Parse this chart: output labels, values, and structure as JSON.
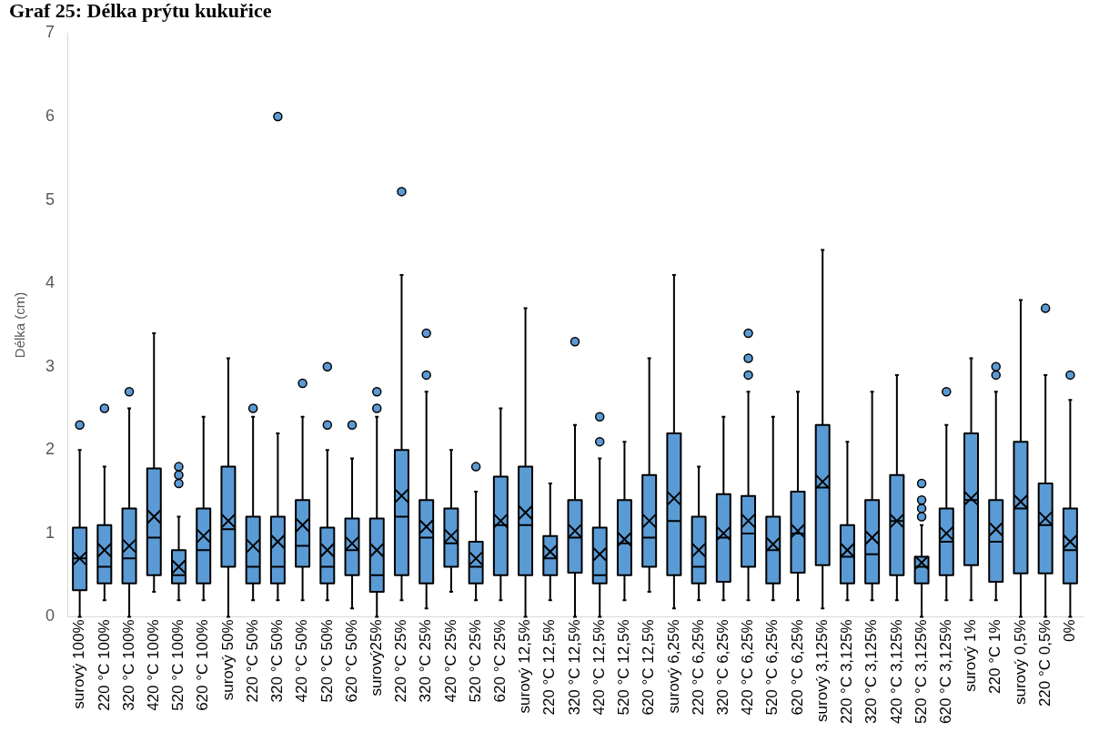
{
  "chart_data": {
    "type": "box",
    "title": "Graf 25: Délka prýtu kukuřice",
    "ylabel": "Délka (cm)",
    "categories": [
      "surový 100%",
      "220 °C 100%",
      "320 °C 100%",
      "420 °C 100%",
      "520 °C 100%",
      "620 °C 100%",
      "surový 50%",
      "220 °C 50%",
      "320 °C 50%",
      "420 °C 50%",
      "520 °C 50%",
      "620 °C 50%",
      "surový25%",
      "220 °C 25%",
      "320 °C 25%",
      "420 °C 25%",
      "520 °C 25%",
      "620 °C 25%",
      "surový 12,5%",
      "220 °C 12,5%",
      "320 °C 12,5%",
      "420 °C 12,5%",
      "520 °C 12,5%",
      "620 °C 12,5%",
      "surový 6,25%",
      "220 °C 6,25%",
      "320 °C 6,25%",
      "420 °C 6,25%",
      "520 °C 6,25%",
      "620 °C 6,25%",
      "surový 3,125%",
      "220 °C 3,125%",
      "320 °C 3,125%",
      "420 °C 3,125%",
      "520 °C 3,125%",
      "620 °C 3,125%",
      "surový 1%",
      "220 °C 1%",
      "surový 0,5%",
      "220 °C 0,5%",
      "0%"
    ],
    "color": "#5b9bd5",
    "ylim": [
      0,
      7
    ],
    "yticks": [
      0,
      1,
      2,
      3,
      4,
      5,
      6,
      7
    ],
    "grid": false,
    "boxes": [
      {
        "low": 0,
        "q1": 0.32,
        "median": 0.7,
        "q3": 1.07,
        "high": 2.0,
        "mean": 0.7,
        "outliers": [
          2.3
        ]
      },
      {
        "low": 0.2,
        "q1": 0.4,
        "median": 0.6,
        "q3": 1.1,
        "high": 1.8,
        "mean": 0.8,
        "outliers": [
          2.5
        ]
      },
      {
        "low": 0,
        "q1": 0.4,
        "median": 0.7,
        "q3": 1.3,
        "high": 2.5,
        "mean": 0.85,
        "outliers": [
          2.7
        ]
      },
      {
        "low": 0.3,
        "q1": 0.5,
        "median": 0.95,
        "q3": 1.78,
        "high": 3.4,
        "mean": 1.2
      },
      {
        "low": 0.2,
        "q1": 0.4,
        "median": 0.5,
        "q3": 0.8,
        "high": 1.2,
        "mean": 0.6,
        "outliers": [
          1.6,
          1.7,
          1.8
        ]
      },
      {
        "low": 0.2,
        "q1": 0.4,
        "median": 0.8,
        "q3": 1.3,
        "high": 2.4,
        "mean": 0.97
      },
      {
        "low": 0,
        "q1": 0.6,
        "median": 1.05,
        "q3": 1.8,
        "high": 3.1,
        "mean": 1.15
      },
      {
        "low": 0.2,
        "q1": 0.4,
        "median": 0.6,
        "q3": 1.2,
        "high": 2.4,
        "mean": 0.85,
        "outliers": [
          2.5
        ]
      },
      {
        "low": 0.2,
        "q1": 0.4,
        "median": 0.6,
        "q3": 1.2,
        "high": 2.2,
        "mean": 0.9,
        "outliers": [
          6.0
        ]
      },
      {
        "low": 0.2,
        "q1": 0.6,
        "median": 0.85,
        "q3": 1.4,
        "high": 2.4,
        "mean": 1.1,
        "outliers": [
          2.8
        ]
      },
      {
        "low": 0.2,
        "q1": 0.4,
        "median": 0.6,
        "q3": 1.07,
        "high": 2.0,
        "mean": 0.8,
        "outliers": [
          2.3,
          3.0
        ]
      },
      {
        "low": 0.1,
        "q1": 0.5,
        "median": 0.8,
        "q3": 1.18,
        "high": 1.9,
        "mean": 0.88,
        "outliers": [
          2.3
        ]
      },
      {
        "low": 0,
        "q1": 0.3,
        "median": 0.5,
        "q3": 1.18,
        "high": 2.4,
        "mean": 0.8,
        "outliers": [
          2.5,
          2.7
        ]
      },
      {
        "low": 0.2,
        "q1": 0.5,
        "median": 1.2,
        "q3": 2.0,
        "high": 4.1,
        "mean": 1.45,
        "outliers": [
          5.1
        ]
      },
      {
        "low": 0.1,
        "q1": 0.4,
        "median": 0.95,
        "q3": 1.4,
        "high": 2.7,
        "mean": 1.08,
        "outliers": [
          2.9,
          3.4
        ]
      },
      {
        "low": 0.3,
        "q1": 0.6,
        "median": 0.88,
        "q3": 1.3,
        "high": 2.0,
        "mean": 0.97
      },
      {
        "low": 0.2,
        "q1": 0.4,
        "median": 0.6,
        "q3": 0.9,
        "high": 1.5,
        "mean": 0.7,
        "outliers": [
          1.8
        ]
      },
      {
        "low": 0.2,
        "q1": 0.5,
        "median": 1.1,
        "q3": 1.68,
        "high": 2.5,
        "mean": 1.15
      },
      {
        "low": 0,
        "q1": 0.5,
        "median": 1.1,
        "q3": 1.8,
        "high": 3.7,
        "mean": 1.25
      },
      {
        "low": 0.2,
        "q1": 0.5,
        "median": 0.7,
        "q3": 0.97,
        "high": 1.6,
        "mean": 0.78
      },
      {
        "low": 0,
        "q1": 0.53,
        "median": 0.95,
        "q3": 1.4,
        "high": 2.3,
        "mean": 1.03,
        "outliers": [
          3.3
        ]
      },
      {
        "low": 0,
        "q1": 0.4,
        "median": 0.5,
        "q3": 1.07,
        "high": 1.9,
        "mean": 0.75,
        "outliers": [
          2.1,
          2.4
        ]
      },
      {
        "low": 0.2,
        "q1": 0.5,
        "median": 0.88,
        "q3": 1.4,
        "high": 2.1,
        "mean": 0.93
      },
      {
        "low": 0.3,
        "q1": 0.6,
        "median": 0.95,
        "q3": 1.7,
        "high": 3.1,
        "mean": 1.15
      },
      {
        "low": 0.1,
        "q1": 0.5,
        "median": 1.15,
        "q3": 2.2,
        "high": 4.1,
        "mean": 1.42
      },
      {
        "low": 0.2,
        "q1": 0.4,
        "median": 0.6,
        "q3": 1.2,
        "high": 1.8,
        "mean": 0.8
      },
      {
        "low": 0.2,
        "q1": 0.42,
        "median": 0.95,
        "q3": 1.47,
        "high": 2.4,
        "mean": 1.0
      },
      {
        "low": 0.2,
        "q1": 0.6,
        "median": 1.0,
        "q3": 1.45,
        "high": 2.7,
        "mean": 1.15,
        "outliers": [
          2.9,
          3.1,
          3.4
        ]
      },
      {
        "low": 0.2,
        "q1": 0.4,
        "median": 0.8,
        "q3": 1.2,
        "high": 2.4,
        "mean": 0.87
      },
      {
        "low": 0.2,
        "q1": 0.53,
        "median": 1.0,
        "q3": 1.5,
        "high": 2.7,
        "mean": 1.03
      },
      {
        "low": 0.1,
        "q1": 0.62,
        "median": 1.55,
        "q3": 2.3,
        "high": 4.4,
        "mean": 1.62
      },
      {
        "low": 0.2,
        "q1": 0.4,
        "median": 0.72,
        "q3": 1.1,
        "high": 2.1,
        "mean": 0.8
      },
      {
        "low": 0.2,
        "q1": 0.4,
        "median": 0.75,
        "q3": 1.4,
        "high": 2.7,
        "mean": 0.95
      },
      {
        "low": 0.2,
        "q1": 0.5,
        "median": 1.15,
        "q3": 1.7,
        "high": 2.9,
        "mean": 1.15
      },
      {
        "low": 0,
        "q1": 0.4,
        "median": 0.6,
        "q3": 0.72,
        "high": 1.1,
        "mean": 0.65,
        "outliers": [
          1.2,
          1.3,
          1.4,
          1.6
        ]
      },
      {
        "low": 0.2,
        "q1": 0.5,
        "median": 0.9,
        "q3": 1.3,
        "high": 2.3,
        "mean": 1.0,
        "outliers": [
          2.7
        ]
      },
      {
        "low": 0.2,
        "q1": 0.62,
        "median": 1.4,
        "q3": 2.2,
        "high": 3.1,
        "mean": 1.42
      },
      {
        "low": 0.2,
        "q1": 0.42,
        "median": 0.9,
        "q3": 1.4,
        "high": 2.7,
        "mean": 1.05,
        "outliers": [
          2.9,
          3.0
        ]
      },
      {
        "low": 0,
        "q1": 0.52,
        "median": 1.3,
        "q3": 2.1,
        "high": 3.8,
        "mean": 1.38
      },
      {
        "low": 0,
        "q1": 0.52,
        "median": 1.1,
        "q3": 1.6,
        "high": 2.9,
        "mean": 1.18,
        "outliers": [
          3.7
        ]
      },
      {
        "low": 0,
        "q1": 0.4,
        "median": 0.8,
        "q3": 1.3,
        "high": 2.6,
        "mean": 0.9,
        "outliers": [
          2.9
        ]
      }
    ]
  }
}
